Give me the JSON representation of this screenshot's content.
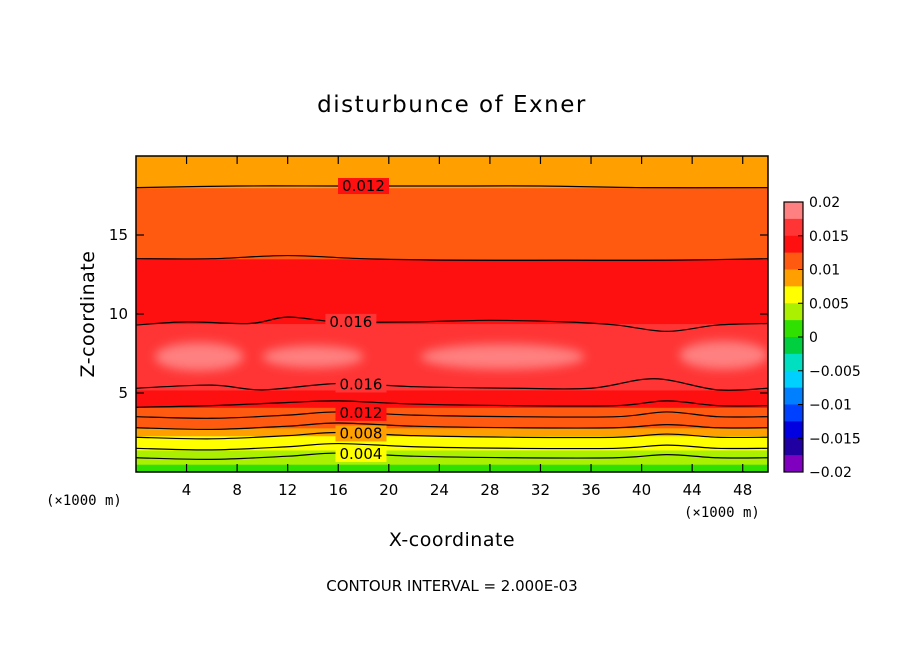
{
  "chart_data": {
    "type": "heatmap",
    "subtype": "filled-contour",
    "title": "disturbunce of Exner",
    "xlabel": "X-coordinate",
    "ylabel": "Z-coordinate",
    "x_unit": "(×1000 m)",
    "y_unit": "(×1000 m)",
    "xlim": [
      0,
      50
    ],
    "ylim": [
      0,
      20
    ],
    "x_ticks": [
      4,
      8,
      12,
      16,
      20,
      24,
      28,
      32,
      36,
      40,
      44,
      48
    ],
    "y_ticks": [
      5,
      10,
      15
    ],
    "contour_interval_text": "CONTOUR INTERVAL = 2.000E-03",
    "colorbar": {
      "min": -0.02,
      "max": 0.02,
      "tick_values": [
        0.02,
        0.015,
        0.01,
        0.005,
        0,
        -0.005,
        -0.01,
        -0.015,
        -0.02
      ],
      "tick_labels": [
        "0.02",
        "0.015",
        "0.01",
        "0.005",
        "0",
        "−0.005",
        "−0.01",
        "−0.015",
        "−0.02"
      ],
      "levels": [
        {
          "min": 0.0175,
          "max": 0.02,
          "color": "#ff8080"
        },
        {
          "min": 0.015,
          "max": 0.0175,
          "color": "#ff3535"
        },
        {
          "min": 0.0125,
          "max": 0.015,
          "color": "#ff1010"
        },
        {
          "min": 0.01,
          "max": 0.0125,
          "color": "#ff5a10"
        },
        {
          "min": 0.0075,
          "max": 0.01,
          "color": "#ffa000"
        },
        {
          "min": 0.005,
          "max": 0.0075,
          "color": "#ffff00"
        },
        {
          "min": 0.0025,
          "max": 0.005,
          "color": "#aaf000"
        },
        {
          "min": 0,
          "max": 0.0025,
          "color": "#30e000"
        },
        {
          "min": -0.0025,
          "max": 0,
          "color": "#00d040"
        },
        {
          "min": -0.005,
          "max": -0.0025,
          "color": "#00e0c0"
        },
        {
          "min": -0.0075,
          "max": -0.005,
          "color": "#00d0ff"
        },
        {
          "min": -0.01,
          "max": -0.0075,
          "color": "#0080ff"
        },
        {
          "min": -0.0125,
          "max": -0.01,
          "color": "#0040ff"
        },
        {
          "min": -0.015,
          "max": -0.0125,
          "color": "#0000e0"
        },
        {
          "min": -0.0175,
          "max": -0.015,
          "color": "#2000a0"
        },
        {
          "min": -0.02,
          "max": -0.0175,
          "color": "#8000c0"
        }
      ]
    },
    "field_bands": [
      {
        "z_bottom": 0.0,
        "z_top": 0.5,
        "value": 0.0012
      },
      {
        "z_bottom": 0.5,
        "z_top": 1.0,
        "value": 0.0035
      },
      {
        "z_bottom": 1.0,
        "z_top": 1.4,
        "value": 0.0045
      },
      {
        "z_bottom": 1.4,
        "z_top": 1.8,
        "value": 0.0055
      },
      {
        "z_bottom": 1.8,
        "z_top": 2.3,
        "value": 0.0072
      },
      {
        "z_bottom": 2.3,
        "z_top": 2.8,
        "value": 0.0085
      },
      {
        "z_bottom": 2.8,
        "z_top": 3.4,
        "value": 0.0105
      },
      {
        "z_bottom": 3.4,
        "z_top": 4.1,
        "value": 0.0118
      },
      {
        "z_bottom": 4.1,
        "z_top": 5.2,
        "value": 0.0135
      },
      {
        "z_bottom": 5.2,
        "z_top": 6.4,
        "value": 0.016
      },
      {
        "z_bottom": 6.4,
        "z_top": 8.2,
        "value": 0.0172
      },
      {
        "z_bottom": 8.2,
        "z_top": 9.4,
        "value": 0.016
      },
      {
        "z_bottom": 9.4,
        "z_top": 13.5,
        "value": 0.014
      },
      {
        "z_bottom": 13.5,
        "z_top": 16.2,
        "value": 0.0122
      },
      {
        "z_bottom": 16.2,
        "z_top": 18.0,
        "value": 0.011
      },
      {
        "z_bottom": 18.0,
        "z_top": 20.0,
        "value": 0.0095
      }
    ],
    "field_patches": [
      {
        "x_center": 5,
        "z_center": 7.3,
        "x_halfwidth": 3.5,
        "z_halfwidth": 0.9,
        "value": 0.0182
      },
      {
        "x_center": 14,
        "z_center": 7.3,
        "x_halfwidth": 4.0,
        "z_halfwidth": 0.7,
        "value": 0.0182
      },
      {
        "x_center": 29,
        "z_center": 7.3,
        "x_halfwidth": 6.5,
        "z_halfwidth": 0.8,
        "value": 0.0182
      },
      {
        "x_center": 46.5,
        "z_center": 7.4,
        "x_halfwidth": 3.5,
        "z_halfwidth": 0.9,
        "value": 0.0182
      }
    ],
    "contours": [
      {
        "value": 0.004,
        "label": "0.004",
        "label_x": 17.8,
        "points": [
          [
            0,
            0.9
          ],
          [
            6,
            0.8
          ],
          [
            12,
            1.0
          ],
          [
            16,
            1.2
          ],
          [
            22,
            1.0
          ],
          [
            30,
            0.9
          ],
          [
            38,
            0.9
          ],
          [
            42,
            1.1
          ],
          [
            46,
            0.9
          ],
          [
            50,
            0.9
          ]
        ]
      },
      {
        "value": 0.006,
        "label": "",
        "points": [
          [
            0,
            1.5
          ],
          [
            6,
            1.4
          ],
          [
            12,
            1.6
          ],
          [
            16,
            1.8
          ],
          [
            22,
            1.6
          ],
          [
            30,
            1.5
          ],
          [
            38,
            1.5
          ],
          [
            42,
            1.7
          ],
          [
            46,
            1.5
          ],
          [
            50,
            1.5
          ]
        ]
      },
      {
        "value": 0.008,
        "label": "0.008",
        "label_x": 17.8,
        "points": [
          [
            0,
            2.2
          ],
          [
            6,
            2.1
          ],
          [
            12,
            2.3
          ],
          [
            16,
            2.5
          ],
          [
            22,
            2.3
          ],
          [
            30,
            2.2
          ],
          [
            38,
            2.2
          ],
          [
            42,
            2.4
          ],
          [
            46,
            2.2
          ],
          [
            50,
            2.2
          ]
        ]
      },
      {
        "value": 0.01,
        "label": "",
        "points": [
          [
            0,
            2.8
          ],
          [
            6,
            2.7
          ],
          [
            12,
            2.9
          ],
          [
            16,
            3.1
          ],
          [
            22,
            2.9
          ],
          [
            30,
            2.8
          ],
          [
            38,
            2.8
          ],
          [
            42,
            3.0
          ],
          [
            46,
            2.8
          ],
          [
            50,
            2.8
          ]
        ]
      },
      {
        "value": 0.012,
        "label": "0.012",
        "label_x": 17.8,
        "points": [
          [
            0,
            3.5
          ],
          [
            6,
            3.4
          ],
          [
            12,
            3.6
          ],
          [
            16,
            3.8
          ],
          [
            22,
            3.6
          ],
          [
            30,
            3.5
          ],
          [
            38,
            3.5
          ],
          [
            42,
            3.8
          ],
          [
            46,
            3.5
          ],
          [
            50,
            3.5
          ]
        ]
      },
      {
        "value": 0.014,
        "label": "",
        "points": [
          [
            0,
            4.1
          ],
          [
            6,
            4.2
          ],
          [
            12,
            4.4
          ],
          [
            16,
            4.5
          ],
          [
            22,
            4.3
          ],
          [
            30,
            4.2
          ],
          [
            38,
            4.2
          ],
          [
            42,
            4.5
          ],
          [
            46,
            4.2
          ],
          [
            50,
            4.2
          ]
        ]
      },
      {
        "value": 0.016,
        "label": "0.016",
        "label_x": 17.8,
        "points": [
          [
            0,
            5.3
          ],
          [
            6,
            5.5
          ],
          [
            10,
            5.2
          ],
          [
            16,
            5.6
          ],
          [
            22,
            5.4
          ],
          [
            30,
            5.3
          ],
          [
            36,
            5.3
          ],
          [
            41,
            5.9
          ],
          [
            46,
            5.2
          ],
          [
            50,
            5.3
          ]
        ]
      },
      {
        "value": 0.016,
        "label": "0.016",
        "label_x": 17.0,
        "points": [
          [
            0,
            9.3
          ],
          [
            4,
            9.5
          ],
          [
            9,
            9.4
          ],
          [
            12,
            9.8
          ],
          [
            16,
            9.5
          ],
          [
            22,
            9.5
          ],
          [
            28,
            9.6
          ],
          [
            34,
            9.5
          ],
          [
            38,
            9.3
          ],
          [
            42,
            8.9
          ],
          [
            46,
            9.3
          ],
          [
            50,
            9.4
          ]
        ]
      },
      {
        "value": 0.014,
        "label": "",
        "points": [
          [
            0,
            13.5
          ],
          [
            6,
            13.5
          ],
          [
            12,
            13.7
          ],
          [
            18,
            13.5
          ],
          [
            26,
            13.4
          ],
          [
            34,
            13.4
          ],
          [
            42,
            13.4
          ],
          [
            50,
            13.5
          ]
        ]
      },
      {
        "value": 0.012,
        "label": "0.012",
        "label_x": 18.0,
        "points": [
          [
            0,
            18.0
          ],
          [
            8,
            18.1
          ],
          [
            16,
            18.1
          ],
          [
            24,
            18.1
          ],
          [
            32,
            18.1
          ],
          [
            40,
            18.0
          ],
          [
            50,
            18.0
          ]
        ]
      }
    ]
  }
}
